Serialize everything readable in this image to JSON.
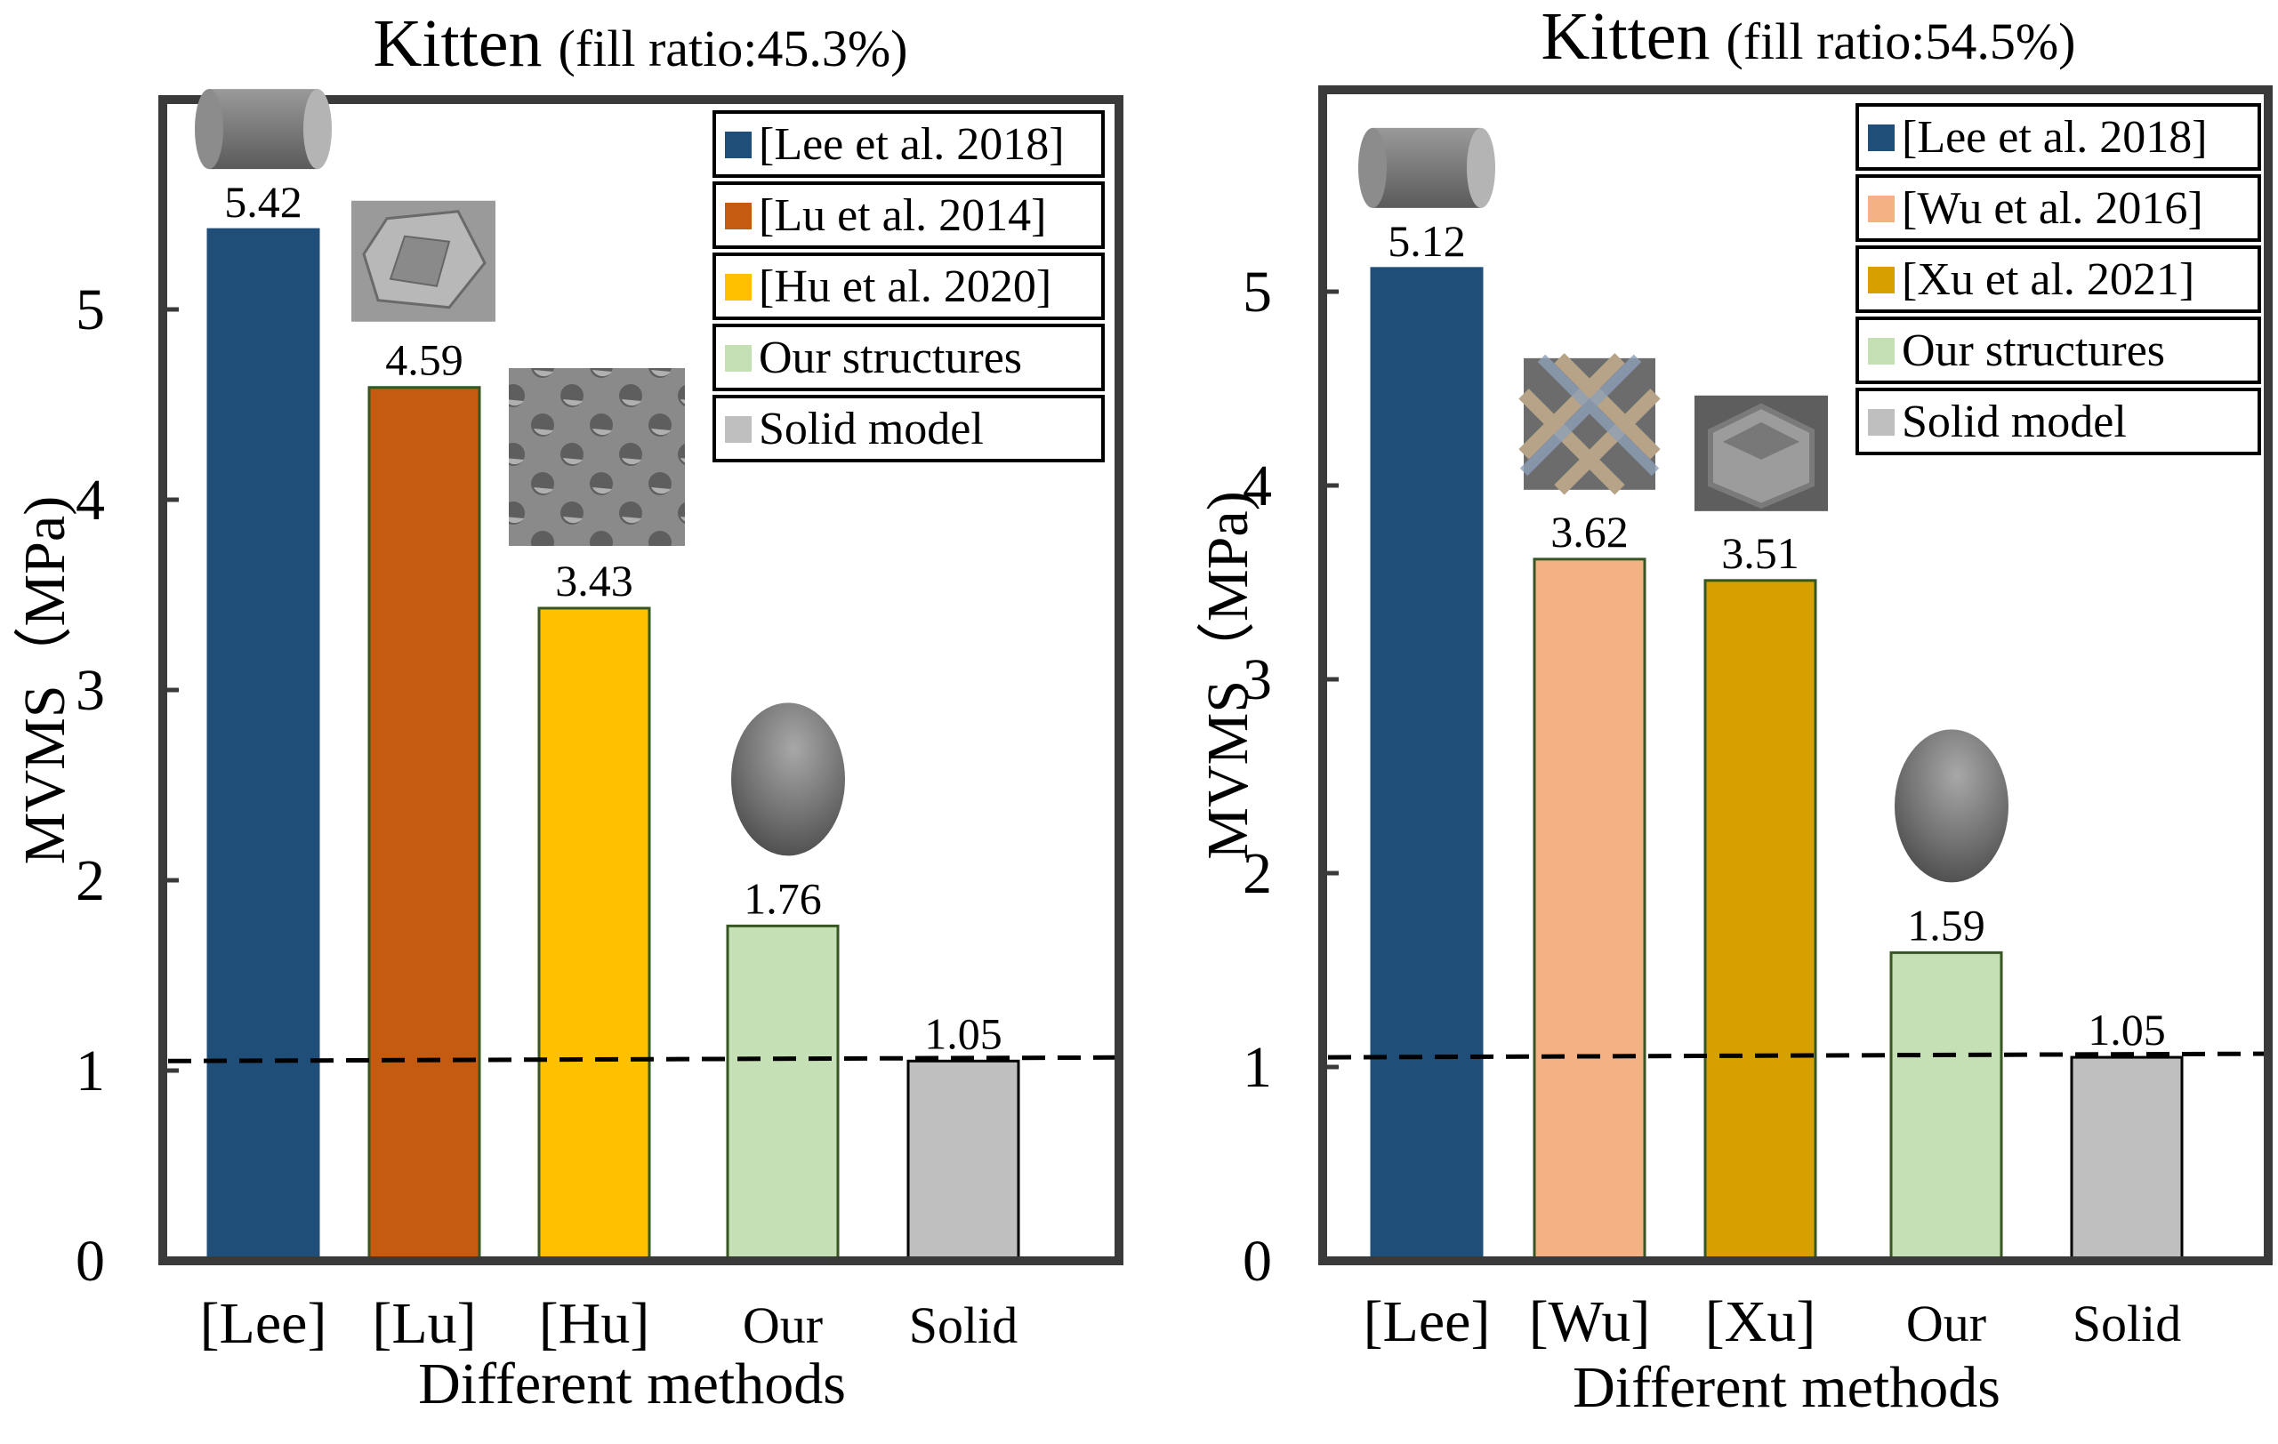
{
  "chart_data": [
    {
      "type": "bar",
      "title": "Kitten",
      "subtitle": "(fill ratio:45.3%)",
      "xlabel": "Different methods",
      "ylabel": "MVMS（MPa)",
      "ylim": [
        0,
        5.9
      ],
      "yticks": [
        "0",
        "1",
        "2",
        "3",
        "4",
        "5"
      ],
      "categories": [
        "[Lee]",
        "[Lu]",
        "[Hu]",
        "Our",
        "Solid"
      ],
      "values": [
        5.42,
        4.59,
        3.43,
        1.76,
        1.05
      ],
      "value_labels": [
        "5.42",
        "4.59",
        "3.43",
        "1.76",
        "1.05"
      ],
      "colors": [
        "#1f4e79",
        "#c55a11",
        "#ffc000",
        "#c5e0b4",
        "#bfbfbf"
      ],
      "edge_colors": [
        "#1f4e79",
        "#375623",
        "#375623",
        "#375623",
        "#000000"
      ],
      "thumbnails": [
        "cylinder-icon",
        "polyhedron-cell-icon",
        "perforated-lattice-icon",
        "sphere-icon",
        ""
      ],
      "reference_line": 1.05,
      "legend": {
        "placement": "top-right",
        "entries": [
          {
            "label": "[Lee et al. 2018]",
            "color": "#1f4e79"
          },
          {
            "label": "[Lu et al. 2014]",
            "color": "#c55a11"
          },
          {
            "label": "[Hu et al. 2020]",
            "color": "#ffc000"
          },
          {
            "label": "Our structures",
            "color": "#c5e0b4"
          },
          {
            "label": "Solid model",
            "color": "#bfbfbf"
          }
        ]
      }
    },
    {
      "type": "bar",
      "title": "Kitten",
      "subtitle": "(fill ratio:54.5%)",
      "xlabel": "Different methods",
      "ylabel": "MVMS（MPa)",
      "ylim": [
        0,
        6.2
      ],
      "yticks": [
        "0",
        "1",
        "2",
        "3",
        "4",
        "5"
      ],
      "categories": [
        "[Lee]",
        "[Wu]",
        "[Xu]",
        "Our",
        "Solid"
      ],
      "values": [
        5.12,
        3.62,
        3.51,
        1.59,
        1.05
      ],
      "value_labels": [
        "5.12",
        "3.62",
        "3.51",
        "1.59",
        "1.05"
      ],
      "colors": [
        "#1f4e79",
        "#f4b183",
        "#d6a000",
        "#c5e0b4",
        "#bfbfbf"
      ],
      "edge_colors": [
        "#1f4e79",
        "#375623",
        "#375623",
        "#375623",
        "#000000"
      ],
      "thumbnails": [
        "cylinder-icon",
        "cross-lattice-icon",
        "hexagon-cell-icon",
        "sphere-icon",
        ""
      ],
      "reference_line": 1.05,
      "legend": {
        "placement": "top-right",
        "entries": [
          {
            "label": "[Lee et al. 2018]",
            "color": "#1f4e79"
          },
          {
            "label": "[Wu et al. 2016]",
            "color": "#f4b183"
          },
          {
            "label": "[Xu et al. 2021]",
            "color": "#d6a000"
          },
          {
            "label": "Our structures",
            "color": "#c5e0b4"
          },
          {
            "label": "Solid model",
            "color": "#bfbfbf"
          }
        ]
      }
    }
  ]
}
